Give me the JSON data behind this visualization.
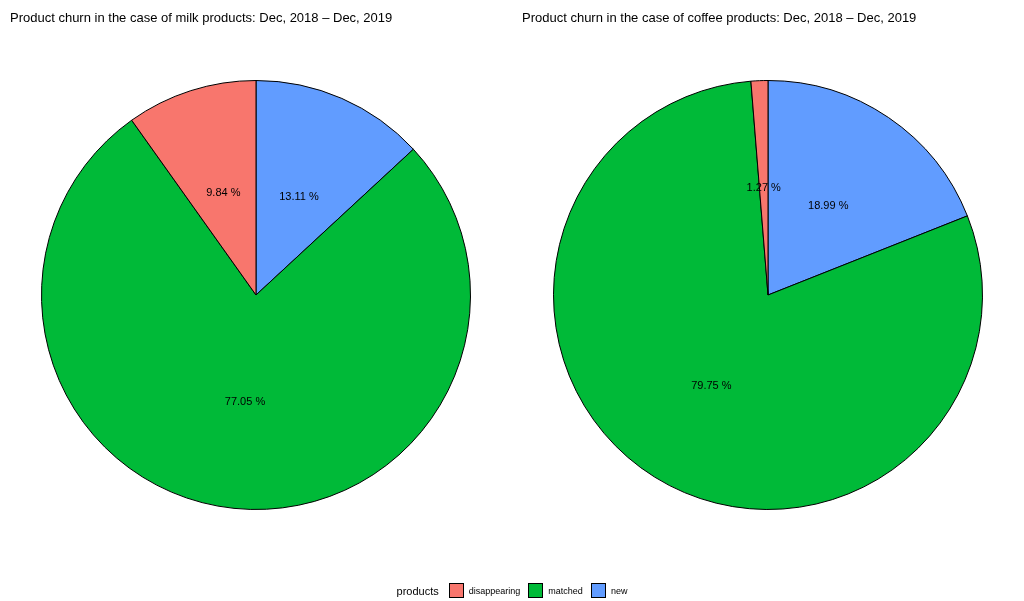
{
  "chart_data": [
    {
      "type": "pie",
      "title": "Product churn in the case of milk products: Dec, 2018 – Dec, 2019",
      "legend_title": "products",
      "legend": "bottom",
      "categories": [
        "disappearing",
        "matched",
        "new"
      ],
      "values": [
        9.84,
        77.05,
        13.11
      ],
      "colors": [
        "#f8766d",
        "#00ba38",
        "#619cff"
      ],
      "value_labels": [
        "9.84 %",
        "77.05 %",
        "13.11 %"
      ]
    },
    {
      "type": "pie",
      "title": "Product churn in the case of coffee products: Dec, 2018 – Dec, 2019",
      "categories": [
        null,
        null,
        null
      ],
      "values": [
        1.27,
        79.75,
        18.99
      ],
      "colors": [
        "#f8766d",
        "#00ba38",
        "#619cff"
      ],
      "value_labels": [
        "1.27 %",
        "79.75 %",
        "18.99 %"
      ]
    }
  ]
}
